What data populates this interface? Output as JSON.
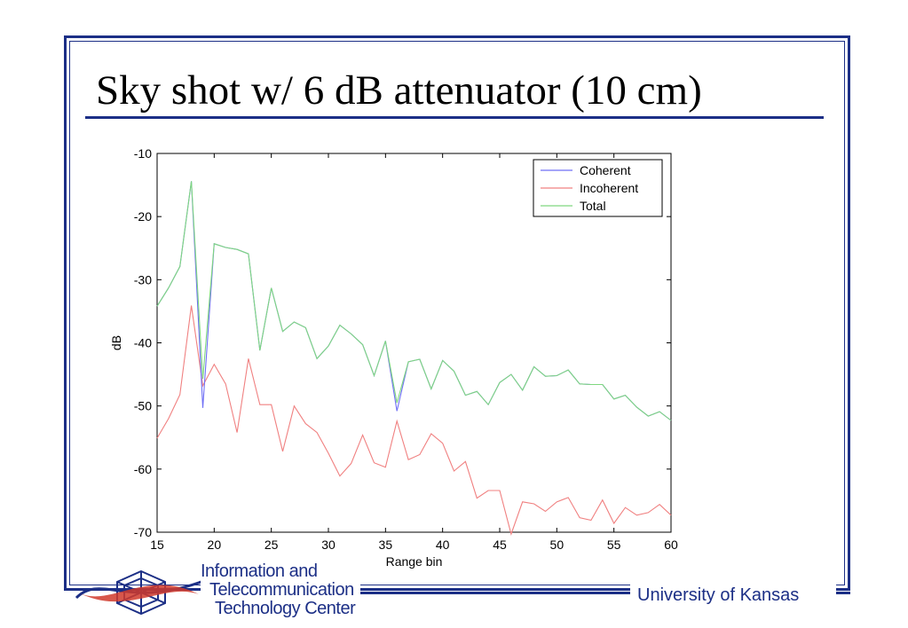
{
  "slide": {
    "title": "Sky shot w/ 6 dB attenuator (10 cm)",
    "footer": "University of Kansas",
    "logo_lines": [
      "Information and",
      "Telecommunication",
      "Technology Center"
    ],
    "accent_color": "#1c2f86"
  },
  "chart_data": {
    "type": "line",
    "title": "",
    "xlabel": "Range bin",
    "ylabel": "dB",
    "xlim": [
      15,
      60
    ],
    "ylim": [
      -70,
      -10
    ],
    "xticks": [
      15,
      20,
      25,
      30,
      35,
      40,
      45,
      50,
      55,
      60
    ],
    "yticks": [
      -10,
      -20,
      -30,
      -40,
      -50,
      -60,
      -70
    ],
    "grid": false,
    "legend_position": "top-right",
    "x": [
      15,
      16,
      17,
      18,
      19,
      20,
      21,
      22,
      23,
      24,
      25,
      26,
      27,
      28,
      29,
      30,
      31,
      32,
      33,
      34,
      35,
      36,
      37,
      38,
      39,
      40,
      41,
      42,
      43,
      44,
      45,
      46,
      47,
      48,
      49,
      50,
      51,
      52,
      53,
      54,
      55,
      56,
      57,
      58,
      59,
      60
    ],
    "series": [
      {
        "name": "Coherent",
        "color": "#6f6ff5",
        "values": [
          -34.2,
          -31.3,
          -27.9,
          -14.4,
          -50.3,
          -24.3,
          -24.9,
          -25.2,
          -25.9,
          -41.2,
          -31.3,
          -38.2,
          -36.7,
          -37.6,
          -42.5,
          -40.5,
          -37.2,
          -38.6,
          -40.3,
          -45.2,
          -39.7,
          -50.8,
          -43.0,
          -42.6,
          -47.3,
          -42.8,
          -44.5,
          -48.3,
          -47.7,
          -49.8,
          -46.3,
          -45.0,
          -47.5,
          -43.8,
          -45.3,
          -45.2,
          -44.3,
          -46.5,
          -46.6,
          -46.6,
          -48.9,
          -48.3,
          -50.2,
          -51.6,
          -50.9,
          -52.3
        ]
      },
      {
        "name": "Incoherent",
        "color": "#f08080",
        "values": [
          -55.1,
          -52.0,
          -48.2,
          -34.1,
          -46.8,
          -43.4,
          -46.5,
          -54.2,
          -42.5,
          -49.8,
          -49.8,
          -57.2,
          -50.0,
          -52.8,
          -54.2,
          -57.5,
          -61.1,
          -59.1,
          -54.6,
          -59.0,
          -59.7,
          -52.4,
          -58.5,
          -57.7,
          -54.4,
          -55.9,
          -60.3,
          -58.8,
          -64.6,
          -63.4,
          -63.4,
          -70.3,
          -65.2,
          -65.5,
          -66.7,
          -65.2,
          -64.5,
          -67.7,
          -68.1,
          -64.9,
          -68.6,
          -66.1,
          -67.3,
          -66.9,
          -65.6,
          -67.3
        ]
      },
      {
        "name": "Total",
        "color": "#7fd87f",
        "values": [
          -34.2,
          -31.3,
          -27.9,
          -14.4,
          -45.7,
          -24.3,
          -24.9,
          -25.2,
          -25.9,
          -41.2,
          -31.3,
          -38.2,
          -36.7,
          -37.6,
          -42.5,
          -40.5,
          -37.2,
          -38.6,
          -40.3,
          -45.2,
          -39.7,
          -49.5,
          -43.0,
          -42.6,
          -47.3,
          -42.8,
          -44.5,
          -48.3,
          -47.7,
          -49.8,
          -46.3,
          -45.0,
          -47.5,
          -43.8,
          -45.3,
          -45.2,
          -44.3,
          -46.5,
          -46.6,
          -46.6,
          -48.9,
          -48.3,
          -50.2,
          -51.6,
          -50.9,
          -52.3
        ]
      }
    ]
  }
}
